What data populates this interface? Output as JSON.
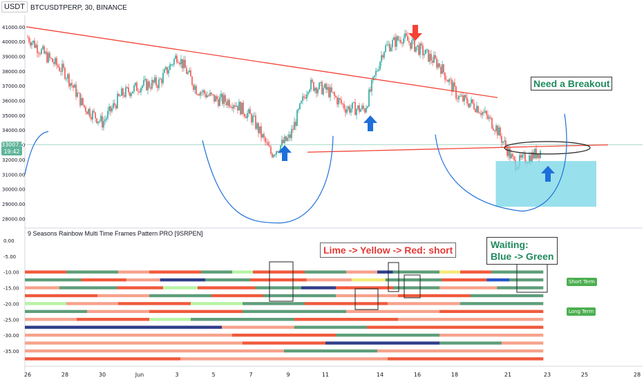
{
  "symbol": {
    "currency": "USDT",
    "title": "BTCUSDTPERP, 30, BINANCE"
  },
  "price_tag": {
    "price": "33007.53",
    "time": "19:42"
  },
  "indicator_title": "9 Seasons Rainbow Multi Time Frames Pattern PRO [9SRPEN]",
  "annotations": {
    "breakout": "Need a Breakout",
    "short_rule": "Lime -> Yellow -> Red: short",
    "waiting_line1": "Waiting:",
    "waiting_line2": "Blue -> Green",
    "short_term": "Short Term",
    "long_term": "Long Term"
  },
  "colors": {
    "up": "#26a69a",
    "down": "#ef5350",
    "trend": "#f44336",
    "curve": "#1e6fd9",
    "arrow_up": "#1e6fd9",
    "arrow_down": "#f44336",
    "zone": "#7fd8e8",
    "r_red": "#f05a3c",
    "r_salmon": "#f6a28c",
    "r_green": "#5e9e7a",
    "r_lime": "#b7f3a4",
    "r_navy": "#2f3d8a",
    "r_yellow": "#f4ea78",
    "r_pink": "#e4a6b8",
    "r_blue": "#2456c9"
  },
  "chart_data": [
    {
      "type": "candlestick",
      "title": "BTCUSDTPERP, 30, BINANCE",
      "x_ticks": [
        "26",
        "28",
        "30",
        "Jun",
        "3",
        "5",
        "7",
        "9",
        "11",
        "14",
        "16",
        "18",
        "21",
        "23",
        "25",
        "28"
      ],
      "y_ticks": [
        41000,
        40000,
        39000,
        38000,
        37000,
        36000,
        35000,
        34000,
        33000,
        32000,
        31000,
        30000,
        29000,
        28000
      ],
      "ylim": [
        27500,
        41600
      ],
      "last_price": 33007.53,
      "approx_close_path": [
        {
          "x": "26",
          "close": 40300
        },
        {
          "x": "27",
          "close": 39000
        },
        {
          "x": "28",
          "close": 37900
        },
        {
          "x": "29",
          "close": 35600
        },
        {
          "x": "30",
          "close": 34500
        },
        {
          "x": "31",
          "close": 36400
        },
        {
          "x": "Jun",
          "close": 37000
        },
        {
          "x": "2",
          "close": 37200
        },
        {
          "x": "3",
          "close": 39100
        },
        {
          "x": "4",
          "close": 36800
        },
        {
          "x": "5",
          "close": 36100
        },
        {
          "x": "6",
          "close": 35900
        },
        {
          "x": "7",
          "close": 34800
        },
        {
          "x": "8",
          "close": 32400
        },
        {
          "x": "9",
          "close": 33500
        },
        {
          "x": "10",
          "close": 37100
        },
        {
          "x": "11",
          "close": 36700
        },
        {
          "x": "12",
          "close": 35500
        },
        {
          "x": "13",
          "close": 35400
        },
        {
          "x": "14",
          "close": 39500
        },
        {
          "x": "15",
          "close": 40300
        },
        {
          "x": "16",
          "close": 39400
        },
        {
          "x": "17",
          "close": 38400
        },
        {
          "x": "18",
          "close": 36200
        },
        {
          "x": "19",
          "close": 35600
        },
        {
          "x": "20",
          "close": 34200
        },
        {
          "x": "21",
          "close": 31700
        },
        {
          "x": "22",
          "close": 32300
        },
        {
          "x": "23",
          "close": 33000
        }
      ],
      "trendlines": [
        {
          "name": "descending resistance",
          "from": {
            "x": "26",
            "y": 41000
          },
          "to": {
            "x": "21",
            "y": 36200
          }
        },
        {
          "name": "support",
          "from": {
            "x": "9",
            "y": 32500
          },
          "to": {
            "x": "23",
            "y": 33000
          }
        }
      ],
      "zone": {
        "from_x": "20",
        "to_x": "25",
        "y_low": 28800,
        "y_high": 31900
      }
    },
    {
      "type": "heatmap",
      "title": "9 Seasons Rainbow Multi Time Frames Pattern PRO [9SRPEN]",
      "y_ticks": [
        "0.00",
        "-5.00",
        "-10.00",
        "-15.00",
        "-20.00",
        "-25.00",
        "-30.00",
        "-35.00"
      ],
      "row_levels": [
        -10,
        -12.5,
        -15,
        -17.5,
        -20,
        -22.5,
        -25,
        -27.5,
        -30,
        -32.5,
        -35,
        -37.5
      ],
      "legend": [
        "Short Term",
        "Long Term"
      ],
      "rows": [
        [
          [
            "r_red",
            8
          ],
          [
            "r_green",
            10
          ],
          [
            "r_salmon",
            6
          ],
          [
            "r_red",
            10
          ],
          [
            "r_green",
            6
          ],
          [
            "r_lime",
            4
          ],
          [
            "r_red",
            10
          ],
          [
            "r_green",
            8
          ],
          [
            "r_salmon",
            6
          ],
          [
            "r_navy",
            3
          ],
          [
            "r_green",
            9
          ],
          [
            "r_yellow",
            4
          ],
          [
            "r_red",
            6
          ],
          [
            "r_green",
            10
          ]
        ],
        [
          [
            "r_green",
            10
          ],
          [
            "r_red",
            8
          ],
          [
            "r_salmon",
            6
          ],
          [
            "r_navy",
            8
          ],
          [
            "r_green",
            8
          ],
          [
            "r_red",
            10
          ],
          [
            "r_salmon",
            8
          ],
          [
            "r_yellow",
            6
          ],
          [
            "r_green",
            10
          ],
          [
            "r_red",
            8
          ],
          [
            "r_blue",
            4
          ],
          [
            "r_green",
            6
          ]
        ],
        [
          [
            "r_salmon",
            6
          ],
          [
            "r_green",
            10
          ],
          [
            "r_red",
            8
          ],
          [
            "r_lime",
            6
          ],
          [
            "r_red",
            10
          ],
          [
            "r_green",
            8
          ],
          [
            "r_navy",
            6
          ],
          [
            "r_red",
            10
          ],
          [
            "r_green",
            8
          ],
          [
            "r_salmon",
            10
          ],
          [
            "r_green",
            8
          ]
        ],
        [
          [
            "r_red",
            14
          ],
          [
            "r_salmon",
            10
          ],
          [
            "r_green",
            12
          ],
          [
            "r_red",
            10
          ],
          [
            "r_green",
            14
          ],
          [
            "r_salmon",
            12
          ],
          [
            "r_red",
            14
          ],
          [
            "r_green",
            14
          ]
        ],
        [
          [
            "r_lime",
            8
          ],
          [
            "r_salmon",
            10
          ],
          [
            "r_red",
            14
          ],
          [
            "r_lime",
            10
          ],
          [
            "r_green",
            12
          ],
          [
            "r_red",
            16
          ],
          [
            "r_salmon",
            14
          ],
          [
            "r_green",
            16
          ]
        ],
        [
          [
            "r_green",
            12
          ],
          [
            "r_salmon",
            12
          ],
          [
            "r_red",
            18
          ],
          [
            "r_green",
            20
          ],
          [
            "r_salmon",
            18
          ],
          [
            "r_red",
            20
          ]
        ],
        [
          [
            "r_salmon",
            10
          ],
          [
            "r_red",
            14
          ],
          [
            "r_lime",
            8
          ],
          [
            "r_green",
            20
          ],
          [
            "r_red",
            20
          ],
          [
            "r_salmon",
            28
          ]
        ],
        [
          [
            "r_navy",
            38
          ],
          [
            "r_salmon",
            14
          ],
          [
            "r_green",
            14
          ],
          [
            "r_red",
            34
          ]
        ],
        [
          [
            "r_salmon",
            40
          ],
          [
            "r_red",
            20
          ],
          [
            "r_green",
            20
          ],
          [
            "r_salmon",
            20
          ]
        ],
        [
          [
            "r_salmon",
            42
          ],
          [
            "r_red",
            16
          ],
          [
            "r_navy",
            22
          ],
          [
            "r_green",
            12
          ],
          [
            "r_salmon",
            8
          ]
        ],
        [
          [
            "r_salmon",
            50
          ],
          [
            "r_green",
            18
          ],
          [
            "r_salmon",
            32
          ]
        ],
        [
          [
            "r_red",
            30
          ],
          [
            "r_salmon",
            40
          ],
          [
            "r_red",
            30
          ]
        ]
      ]
    }
  ]
}
